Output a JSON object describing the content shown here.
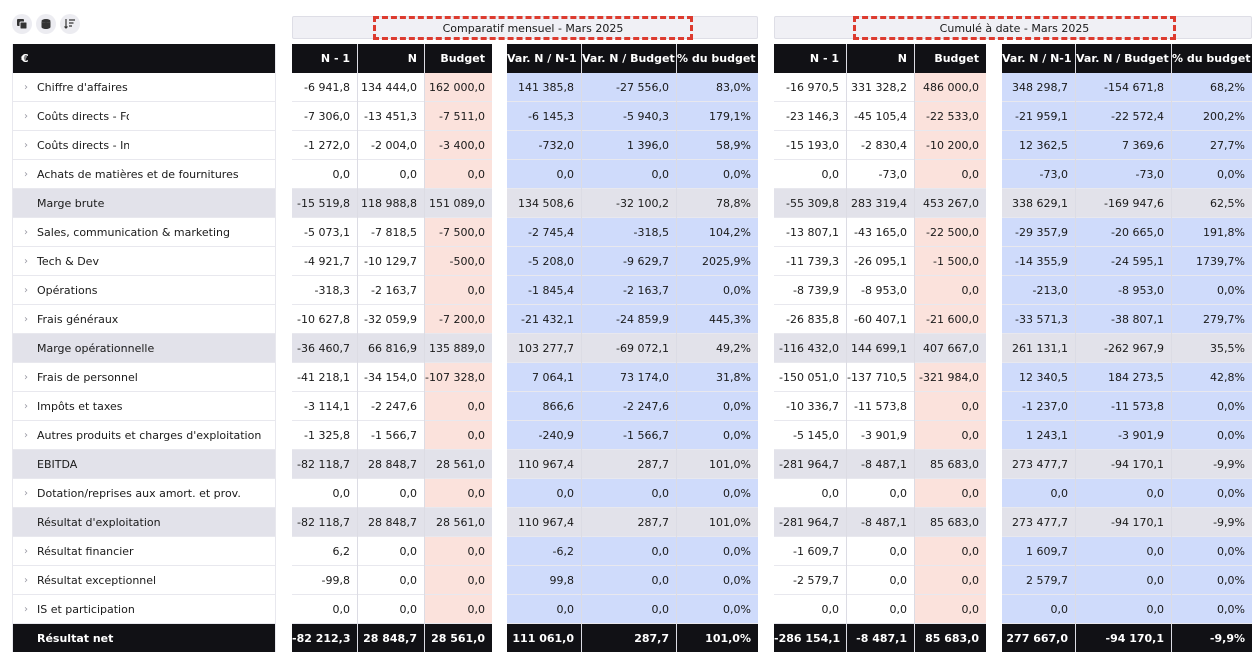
{
  "toolbar": {
    "icons": [
      "copy-icon",
      "database-icon",
      "sort-icon"
    ]
  },
  "groups": {
    "monthly": "Comparatif mensuel - Mars 2025",
    "cumul": "Cumulé à date - Mars 2025"
  },
  "currency_header": "€",
  "headers": {
    "n1": "N - 1",
    "n": "N",
    "budget": "Budget",
    "var_n_n1": "Var. N / N-1",
    "var_n_budget": "Var. N / Budget",
    "pct_budget": "% du budget"
  },
  "rows": [
    {
      "label": "Chiffre d'affaires",
      "type": "item",
      "m": [
        "-6 941,8",
        "134 444,0",
        "162 000,0",
        "141 385,8",
        "-27 556,0",
        "83,0%"
      ],
      "c": [
        "-16 970,5",
        "331 328,2",
        "486 000,0",
        "348 298,7",
        "-154 671,8",
        "68,2%"
      ]
    },
    {
      "label": "Coûts directs - Fo",
      "type": "item",
      "m": [
        "-7 306,0",
        "-13 451,3",
        "-7 511,0",
        "-6 145,3",
        "-5 940,3",
        "179,1%"
      ],
      "c": [
        "-23 146,3",
        "-45 105,4",
        "-22 533,0",
        "-21 959,1",
        "-22 572,4",
        "200,2%"
      ]
    },
    {
      "label": "Coûts directs - In",
      "type": "item",
      "m": [
        "-1 272,0",
        "-2 004,0",
        "-3 400,0",
        "-732,0",
        "1 396,0",
        "58,9%"
      ],
      "c": [
        "-15 193,0",
        "-2 830,4",
        "-10 200,0",
        "12 362,5",
        "7 369,6",
        "27,7%"
      ]
    },
    {
      "label": "Achats de matières et de fournitures",
      "type": "item",
      "m": [
        "0,0",
        "0,0",
        "0,0",
        "0,0",
        "0,0",
        "0,0%"
      ],
      "c": [
        "0,0",
        "-73,0",
        "0,0",
        "-73,0",
        "-73,0",
        "0,0%"
      ]
    },
    {
      "label": "Marge brute",
      "type": "sub",
      "m": [
        "-15 519,8",
        "118 988,8",
        "151 089,0",
        "134 508,6",
        "-32 100,2",
        "78,8%"
      ],
      "c": [
        "-55 309,8",
        "283 319,4",
        "453 267,0",
        "338 629,1",
        "-169 947,6",
        "62,5%"
      ]
    },
    {
      "label": "Sales, communication & marketing",
      "type": "item",
      "m": [
        "-5 073,1",
        "-7 818,5",
        "-7 500,0",
        "-2 745,4",
        "-318,5",
        "104,2%"
      ],
      "c": [
        "-13 807,1",
        "-43 165,0",
        "-22 500,0",
        "-29 357,9",
        "-20 665,0",
        "191,8%"
      ]
    },
    {
      "label": "Tech & Dev",
      "type": "item",
      "m": [
        "-4 921,7",
        "-10 129,7",
        "-500,0",
        "-5 208,0",
        "-9 629,7",
        "2025,9%"
      ],
      "c": [
        "-11 739,3",
        "-26 095,1",
        "-1 500,0",
        "-14 355,9",
        "-24 595,1",
        "1739,7%"
      ]
    },
    {
      "label": "Opérations",
      "type": "item",
      "m": [
        "-318,3",
        "-2 163,7",
        "0,0",
        "-1 845,4",
        "-2 163,7",
        "0,0%"
      ],
      "c": [
        "-8 739,9",
        "-8 953,0",
        "0,0",
        "-213,0",
        "-8 953,0",
        "0,0%"
      ]
    },
    {
      "label": "Frais généraux",
      "type": "item",
      "m": [
        "-10 627,8",
        "-32 059,9",
        "-7 200,0",
        "-21 432,1",
        "-24 859,9",
        "445,3%"
      ],
      "c": [
        "-26 835,8",
        "-60 407,1",
        "-21 600,0",
        "-33 571,3",
        "-38 807,1",
        "279,7%"
      ]
    },
    {
      "label": "Marge opérationnelle",
      "type": "sub",
      "m": [
        "-36 460,7",
        "66 816,9",
        "135 889,0",
        "103 277,7",
        "-69 072,1",
        "49,2%"
      ],
      "c": [
        "-116 432,0",
        "144 699,1",
        "407 667,0",
        "261 131,1",
        "-262 967,9",
        "35,5%"
      ]
    },
    {
      "label": "Frais de personnel",
      "type": "item",
      "m": [
        "-41 218,1",
        "-34 154,0",
        "-107 328,0",
        "7 064,1",
        "73 174,0",
        "31,8%"
      ],
      "c": [
        "-150 051,0",
        "-137 710,5",
        "-321 984,0",
        "12 340,5",
        "184 273,5",
        "42,8%"
      ]
    },
    {
      "label": "Impôts et taxes",
      "type": "item",
      "m": [
        "-3 114,1",
        "-2 247,6",
        "0,0",
        "866,6",
        "-2 247,6",
        "0,0%"
      ],
      "c": [
        "-10 336,7",
        "-11 573,8",
        "0,0",
        "-1 237,0",
        "-11 573,8",
        "0,0%"
      ]
    },
    {
      "label": "Autres produits et charges d'exploitation",
      "type": "item",
      "m": [
        "-1 325,8",
        "-1 566,7",
        "0,0",
        "-240,9",
        "-1 566,7",
        "0,0%"
      ],
      "c": [
        "-5 145,0",
        "-3 901,9",
        "0,0",
        "1 243,1",
        "-3 901,9",
        "0,0%"
      ]
    },
    {
      "label": "EBITDA",
      "type": "sub",
      "m": [
        "-82 118,7",
        "28 848,7",
        "28 561,0",
        "110 967,4",
        "287,7",
        "101,0%"
      ],
      "c": [
        "-281 964,7",
        "-8 487,1",
        "85 683,0",
        "273 477,7",
        "-94 170,1",
        "-9,9%"
      ]
    },
    {
      "label": "Dotation/reprises aux amort. et prov.",
      "type": "item",
      "m": [
        "0,0",
        "0,0",
        "0,0",
        "0,0",
        "0,0",
        "0,0%"
      ],
      "c": [
        "0,0",
        "0,0",
        "0,0",
        "0,0",
        "0,0",
        "0,0%"
      ]
    },
    {
      "label": "Résultat d'exploitation",
      "type": "sub",
      "m": [
        "-82 118,7",
        "28 848,7",
        "28 561,0",
        "110 967,4",
        "287,7",
        "101,0%"
      ],
      "c": [
        "-281 964,7",
        "-8 487,1",
        "85 683,0",
        "273 477,7",
        "-94 170,1",
        "-9,9%"
      ]
    },
    {
      "label": "Résultat financier",
      "type": "item",
      "m": [
        "6,2",
        "0,0",
        "0,0",
        "-6,2",
        "0,0",
        "0,0%"
      ],
      "c": [
        "-1 609,7",
        "0,0",
        "0,0",
        "1 609,7",
        "0,0",
        "0,0%"
      ]
    },
    {
      "label": "Résultat exceptionnel",
      "type": "item",
      "m": [
        "-99,8",
        "0,0",
        "0,0",
        "99,8",
        "0,0",
        "0,0%"
      ],
      "c": [
        "-2 579,7",
        "0,0",
        "0,0",
        "2 579,7",
        "0,0",
        "0,0%"
      ]
    },
    {
      "label": "IS et participation",
      "type": "item",
      "m": [
        "0,0",
        "0,0",
        "0,0",
        "0,0",
        "0,0",
        "0,0%"
      ],
      "c": [
        "0,0",
        "0,0",
        "0,0",
        "0,0",
        "0,0",
        "0,0%"
      ]
    },
    {
      "label": "Résultat net",
      "type": "tot",
      "m": [
        "-82 212,3",
        "28 848,7",
        "28 561,0",
        "111 061,0",
        "287,7",
        "101,0%"
      ],
      "c": [
        "-286 154,1",
        "-8 487,1",
        "85 683,0",
        "277 667,0",
        "-94 170,1",
        "-9,9%"
      ]
    }
  ]
}
